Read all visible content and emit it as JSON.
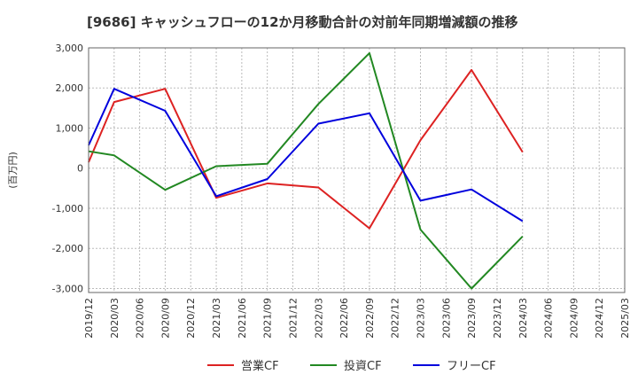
{
  "chart_data": {
    "type": "line",
    "title": "[9686]  キャッシュフローの12か月移動合計の対前年同期増減額の推移",
    "ylabel": "(百万円)",
    "xlabel": "",
    "ylim": [
      -3100,
      3000
    ],
    "yticks": [
      3000,
      2000,
      1000,
      0,
      -1000,
      -2000,
      -3000
    ],
    "ytick_labels": [
      "3,000",
      "2,000",
      "1,000",
      "0",
      "-1,000",
      "-2,000",
      "-3,000"
    ],
    "categories": [
      "2019/12",
      "2020/03",
      "2020/06",
      "2020/09",
      "2020/12",
      "2021/03",
      "2021/06",
      "2021/09",
      "2021/12",
      "2022/03",
      "2022/06",
      "2022/09",
      "2022/12",
      "2023/03",
      "2023/06",
      "2023/09",
      "2023/12",
      "2024/03",
      "2024/06",
      "2024/09",
      "2024/12",
      "2025/03"
    ],
    "grid": true,
    "legend_position": "bottom",
    "series": [
      {
        "name": "営業CF",
        "color": "#dd2222",
        "values": [
          150,
          1650,
          null,
          1980,
          null,
          -740,
          null,
          -380,
          null,
          -480,
          null,
          -1500,
          null,
          700,
          null,
          2450,
          null,
          400,
          null,
          null,
          null,
          null
        ]
      },
      {
        "name": "投資CF",
        "color": "#228822",
        "values": [
          420,
          320,
          null,
          -540,
          null,
          50,
          null,
          110,
          null,
          1600,
          null,
          2870,
          null,
          -1530,
          null,
          -3000,
          null,
          -1700,
          null,
          null,
          null,
          null
        ]
      },
      {
        "name": "フリーCF",
        "color": "#0000dd",
        "values": [
          570,
          1980,
          null,
          1430,
          null,
          -700,
          null,
          -270,
          null,
          1110,
          null,
          1370,
          null,
          -810,
          null,
          -530,
          null,
          -1320,
          null,
          null,
          null,
          null
        ]
      }
    ]
  }
}
